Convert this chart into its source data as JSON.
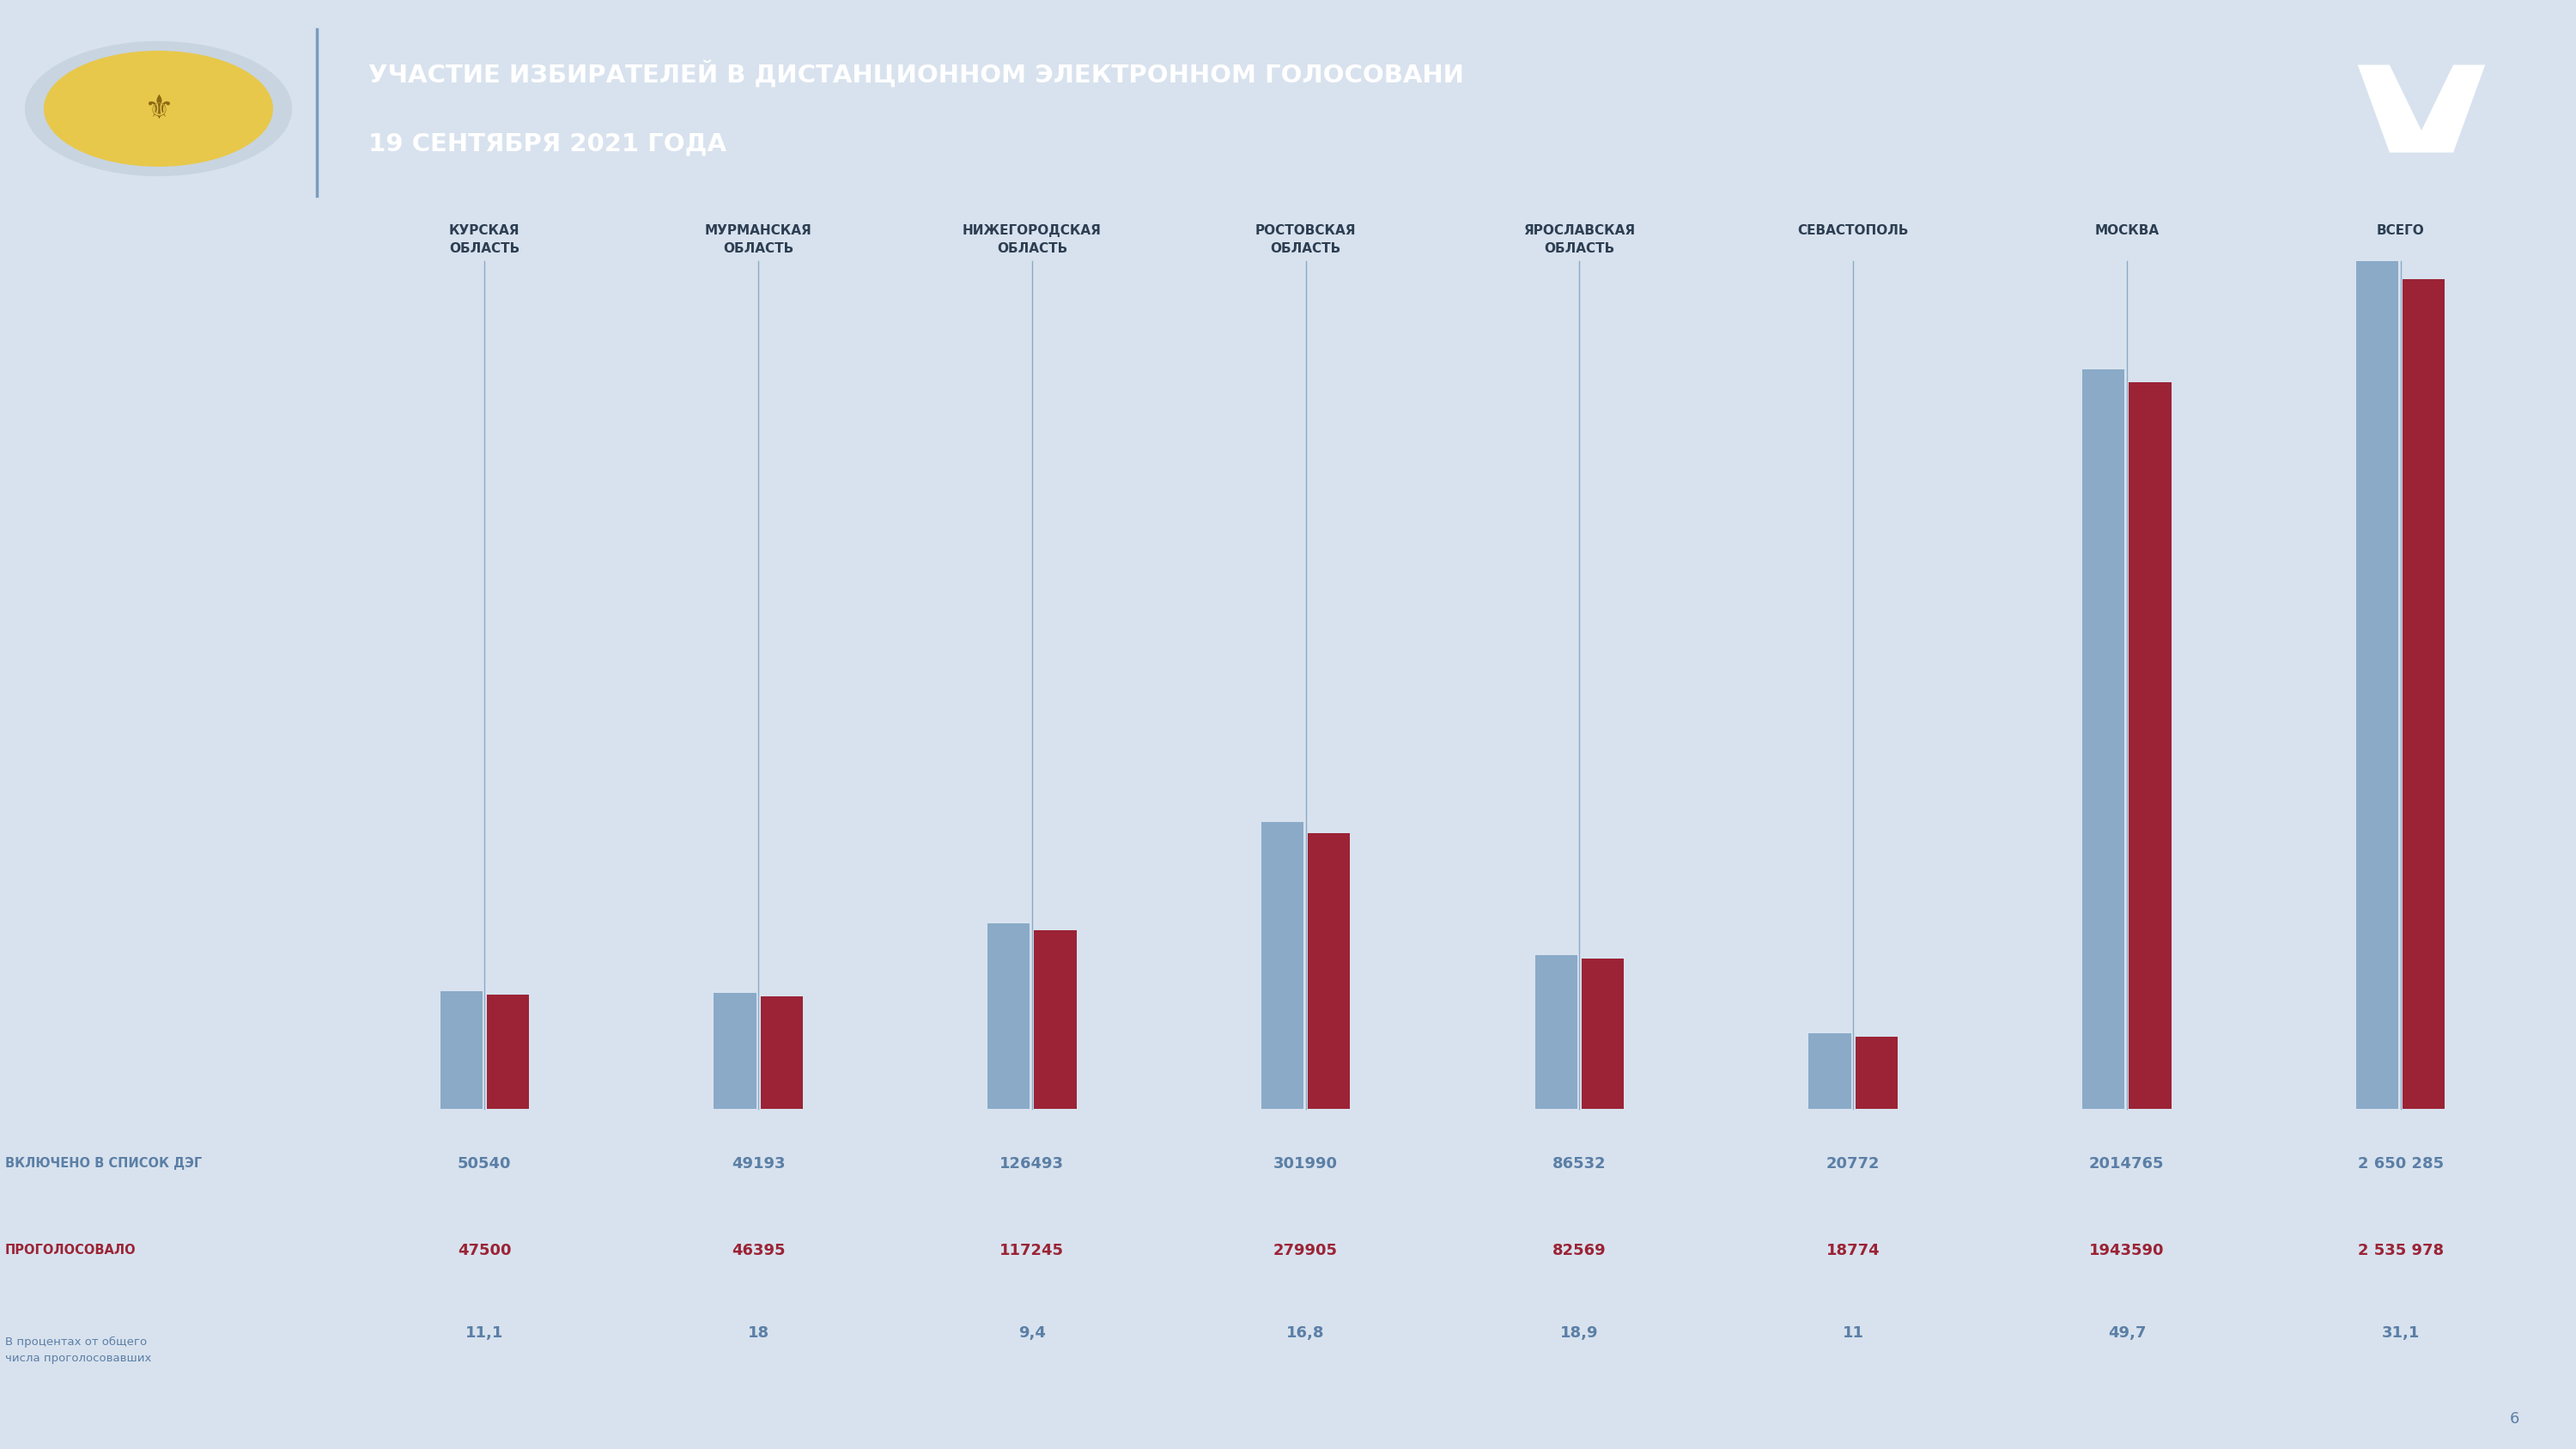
{
  "title_line1": "УЧАСТИЕ ИЗБИРАТЕЛЕЙ В ДИСТАНЦИОННОМ ЭЛЕКТРОННОМ ГОЛОСОВАНИ",
  "title_line2": "19 СЕНТЯБРЯ 2021 ГОДА",
  "header_bg": "#5b7faa",
  "page_bg": "#d8e2ee",
  "blue_bar_color": "#8aaac8",
  "red_bar_color": "#9b2335",
  "line_color": "#8aaac8",
  "categories": [
    "КУРСКАЯ\nОБЛАСТЬ",
    "МУРМАНСКАЯ\nОБЛАСТЬ",
    "НИЖЕГОРОДСКАЯ\nОБЛАСТЬ",
    "РОСТОВСКАЯ\nОБЛАСТЬ",
    "ЯРОСЛАВСКАЯ\nОБЛАСТЬ",
    "СЕВАСТОПОЛЬ",
    "МОСКВА",
    "ВСЕГО"
  ],
  "included": [
    50540,
    49193,
    126493,
    301990,
    86532,
    20772,
    2014765,
    2650285
  ],
  "voted": [
    47500,
    46395,
    117245,
    279905,
    82569,
    18774,
    1943590,
    2535978
  ],
  "percent": [
    "11,1",
    "18",
    "9,4",
    "16,8",
    "18,9",
    "11",
    "49,7",
    "31,1"
  ],
  "included_label": "ВКЛЮЧЕНО В СПИСОК ДЭГ",
  "voted_label": "ПРОГОЛОСОВАЛО",
  "percent_label": "В процентах от общего\nчисла проголосовавших",
  "included_str": [
    "50540",
    "49193",
    "126493",
    "301990",
    "86532",
    "20772",
    "2014765",
    "2 650 285"
  ],
  "voted_str": [
    "47500",
    "46395",
    "117245",
    "279905",
    "82569",
    "18774",
    "1943590",
    "2 535 978"
  ],
  "text_blue": "#5b7fa6",
  "text_red": "#9b2335",
  "text_dark": "#2d3e52",
  "logo_dark": "#2e4a6b",
  "separator_color": "#7a9cbf"
}
